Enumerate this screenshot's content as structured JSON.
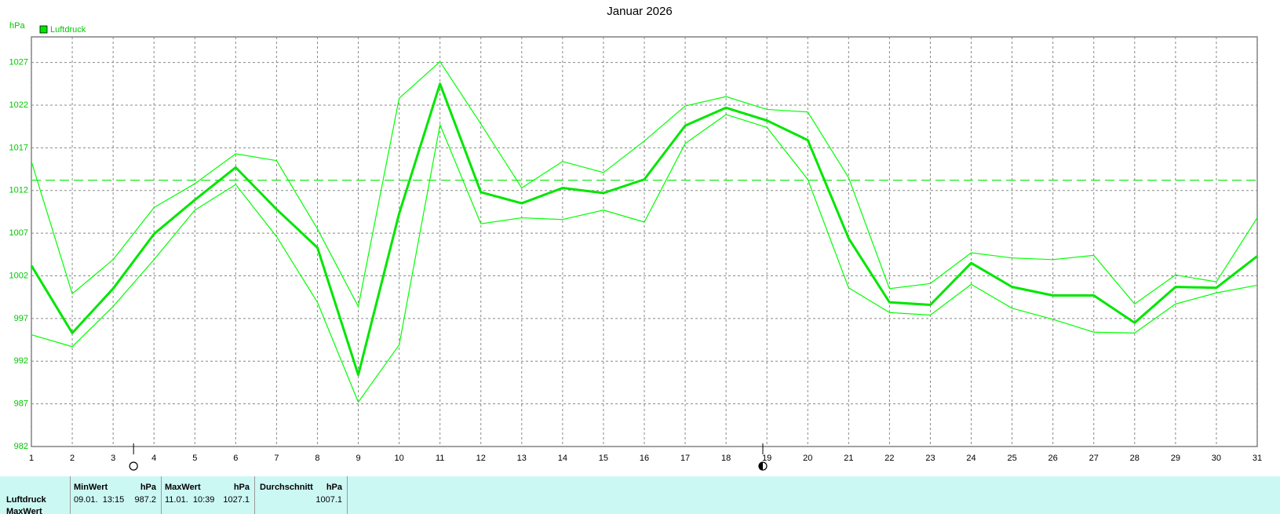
{
  "chart_data": {
    "type": "line",
    "title": "Januar 2026",
    "y_label": "hPa",
    "x": [
      1,
      2,
      3,
      4,
      5,
      6,
      7,
      8,
      9,
      10,
      11,
      12,
      13,
      14,
      15,
      16,
      17,
      18,
      19,
      20,
      21,
      22,
      23,
      24,
      25,
      26,
      27,
      28,
      29,
      30,
      31
    ],
    "xlim": [
      1,
      31
    ],
    "xticks": [
      1,
      2,
      3,
      4,
      5,
      6,
      7,
      8,
      9,
      10,
      11,
      12,
      13,
      14,
      15,
      16,
      17,
      18,
      19,
      20,
      21,
      22,
      23,
      24,
      25,
      26,
      27,
      28,
      29,
      30,
      31
    ],
    "ylim": [
      982,
      1030
    ],
    "yticks": [
      982,
      987,
      992,
      997,
      1002,
      1007,
      1012,
      1017,
      1022,
      1027
    ],
    "grid": true,
    "series": [
      {
        "name": "Luftdruck",
        "color": "#00e600",
        "values": [
          1003.2,
          995.3,
          1000.5,
          1006.9,
          1010.9,
          1014.7,
          1009.8,
          1005.3,
          990.4,
          1009.3,
          1024.5,
          1011.8,
          1010.5,
          1012.3,
          1011.7,
          1013.3,
          1019.6,
          1021.7,
          1020.2,
          1017.9,
          1006.4,
          998.9,
          998.6,
          1003.5,
          1000.7,
          999.7,
          999.7,
          996.5,
          1000.7,
          1000.6,
          1004.3
        ]
      },
      {
        "color": "#00ff00",
        "values": [
          1015.4,
          999.9,
          1003.9,
          1010.0,
          1012.8,
          1016.3,
          1015.5,
          1007.5,
          998.4,
          1022.8,
          1027.1,
          1019.8,
          1012.3,
          1015.4,
          1014.1,
          1017.8,
          1021.9,
          1023.0,
          1021.5,
          1021.2,
          1013.5,
          1000.5,
          1001.1,
          1004.7,
          1004.1,
          1003.9,
          1004.4,
          998.7,
          1002.1,
          1001.3,
          1008.8
        ]
      },
      {
        "color": "#00ff00",
        "values": [
          995.1,
          993.7,
          998.4,
          1003.9,
          1009.7,
          1012.7,
          1006.6,
          998.9,
          987.2,
          993.9,
          1019.7,
          1008.1,
          1008.8,
          1008.6,
          1009.7,
          1008.3,
          1017.5,
          1020.9,
          1019.4,
          1013.3,
          1000.6,
          997.7,
          997.4,
          1001.0,
          998.2,
          996.9,
          995.4,
          995.3,
          998.7,
          1000.0,
          1000.9
        ]
      }
    ],
    "average_line": 1013.2,
    "moon_x": [
      3.5,
      18.9
    ]
  },
  "table": {
    "header": [
      "MinWert",
      "hPa",
      "MaxWert",
      "hPa",
      "Durchschnitt",
      "hPa"
    ],
    "rows": [
      [
        "Luftdruck",
        "09.01.  13:15",
        "987.2",
        "11.01.  10:39",
        "1027.1",
        "1007.1"
      ],
      [
        "MaxWert"
      ]
    ]
  }
}
